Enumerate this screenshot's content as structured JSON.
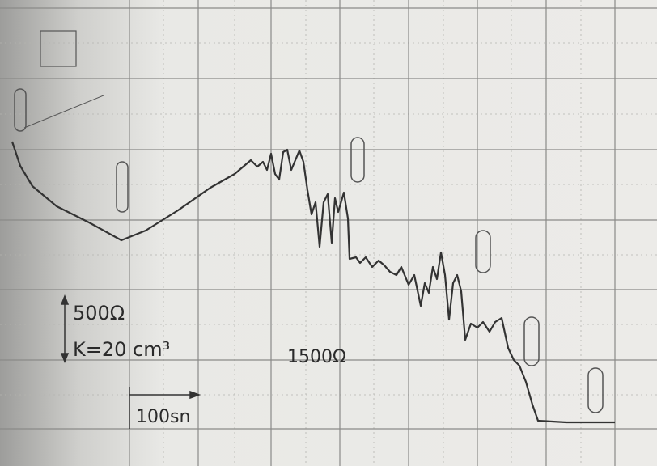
{
  "labels": {
    "scale_top": "500Ω",
    "coefficient": "K=20 cm³",
    "mid_value": "1500Ω",
    "time_scale": "100sn"
  }
}
